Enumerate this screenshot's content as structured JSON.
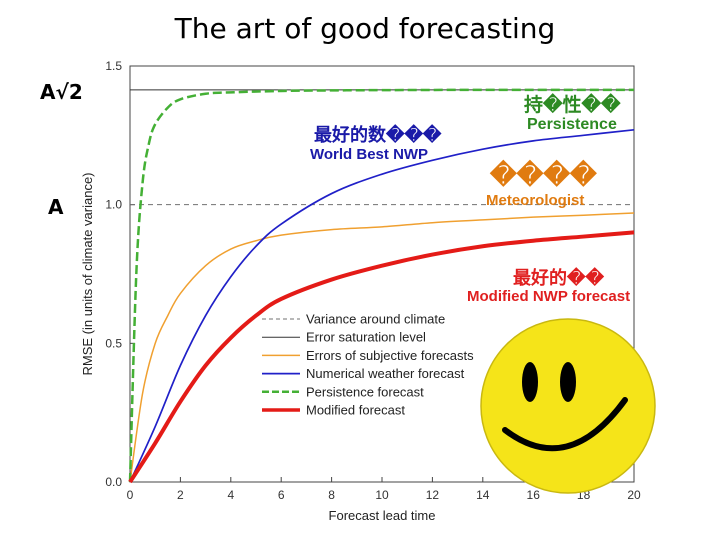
{
  "slide": {
    "title": "The art of good forecasting",
    "label_sqrt2": "A√2",
    "label_a": "A"
  },
  "annotations": {
    "persistence_cn": "持�性��",
    "persistence_en": "Persistence",
    "world_best_cn": "最好的数���",
    "world_best_en": "World Best NWP",
    "meteorologist_cn": "����",
    "meteorologist_en": "Meteorologist",
    "modified_cn": "最好的��",
    "modified_en": "Modified NWP forecast"
  },
  "colors": {
    "variance": "#707070",
    "saturation": "#333333",
    "subjective": "#f0a030",
    "numerical": "#2020c8",
    "persistence": "#44b035",
    "modified": "#e41b17",
    "annotation_blue": "#1a1aa8",
    "annotation_green": "#2d8a23",
    "annotation_orange": "#e07b10",
    "annotation_red": "#e02020",
    "smiley_face": "#f5e419"
  },
  "smiley_icon": "smiley-face-icon",
  "chart_data": {
    "type": "line",
    "xlabel": "Forecast lead time",
    "ylabel": "RMSE (in units of climate variance)",
    "xlim": [
      0,
      20
    ],
    "ylim": [
      0,
      1.5
    ],
    "xticks": [
      "0",
      "2",
      "4",
      "6",
      "8",
      "10",
      "12",
      "14",
      "16",
      "18",
      "20"
    ],
    "yticks": [
      "0.0",
      "0.5",
      "1.0",
      "1.5"
    ],
    "legend_position": "bottom-center",
    "series": [
      {
        "name": "Variance around climate",
        "color": "#707070",
        "dash": "dashed",
        "x": [
          0,
          20
        ],
        "y": [
          1.0,
          1.0
        ]
      },
      {
        "name": "Error saturation level",
        "color": "#333333",
        "dash": "solid",
        "x": [
          0,
          20
        ],
        "y": [
          1.414,
          1.414
        ]
      },
      {
        "name": "Errors of subjective forecasts",
        "color": "#f0a030",
        "dash": "solid",
        "x": [
          0,
          0.5,
          1,
          1.5,
          2,
          3,
          4,
          5,
          6,
          8,
          10,
          12,
          14,
          16,
          18,
          20
        ],
        "y": [
          0,
          0.32,
          0.5,
          0.6,
          0.68,
          0.78,
          0.84,
          0.87,
          0.89,
          0.91,
          0.92,
          0.935,
          0.945,
          0.955,
          0.962,
          0.97
        ]
      },
      {
        "name": "Numerical weather forecast",
        "color": "#2020c8",
        "dash": "solid",
        "x": [
          0,
          1,
          2,
          3,
          4,
          5,
          6,
          8,
          10,
          12,
          14,
          16,
          18,
          20
        ],
        "y": [
          0,
          0.2,
          0.42,
          0.6,
          0.74,
          0.85,
          0.93,
          1.04,
          1.11,
          1.16,
          1.2,
          1.23,
          1.25,
          1.27
        ]
      },
      {
        "name": "Persistence forecast",
        "color": "#44b035",
        "dash": "dashed",
        "x": [
          0,
          0.25,
          0.5,
          0.75,
          1,
          1.5,
          2,
          3,
          4,
          6,
          8,
          10,
          14,
          20
        ],
        "y": [
          0,
          0.75,
          1.08,
          1.22,
          1.29,
          1.35,
          1.38,
          1.4,
          1.405,
          1.41,
          1.412,
          1.413,
          1.414,
          1.414
        ]
      },
      {
        "name": "Modified forecast",
        "color": "#e41b17",
        "dash": "solid",
        "x": [
          0,
          1,
          2,
          3,
          4,
          5,
          6,
          8,
          10,
          12,
          14,
          16,
          18,
          20
        ],
        "y": [
          0,
          0.14,
          0.29,
          0.42,
          0.52,
          0.6,
          0.66,
          0.73,
          0.78,
          0.82,
          0.85,
          0.87,
          0.885,
          0.9
        ]
      }
    ]
  }
}
